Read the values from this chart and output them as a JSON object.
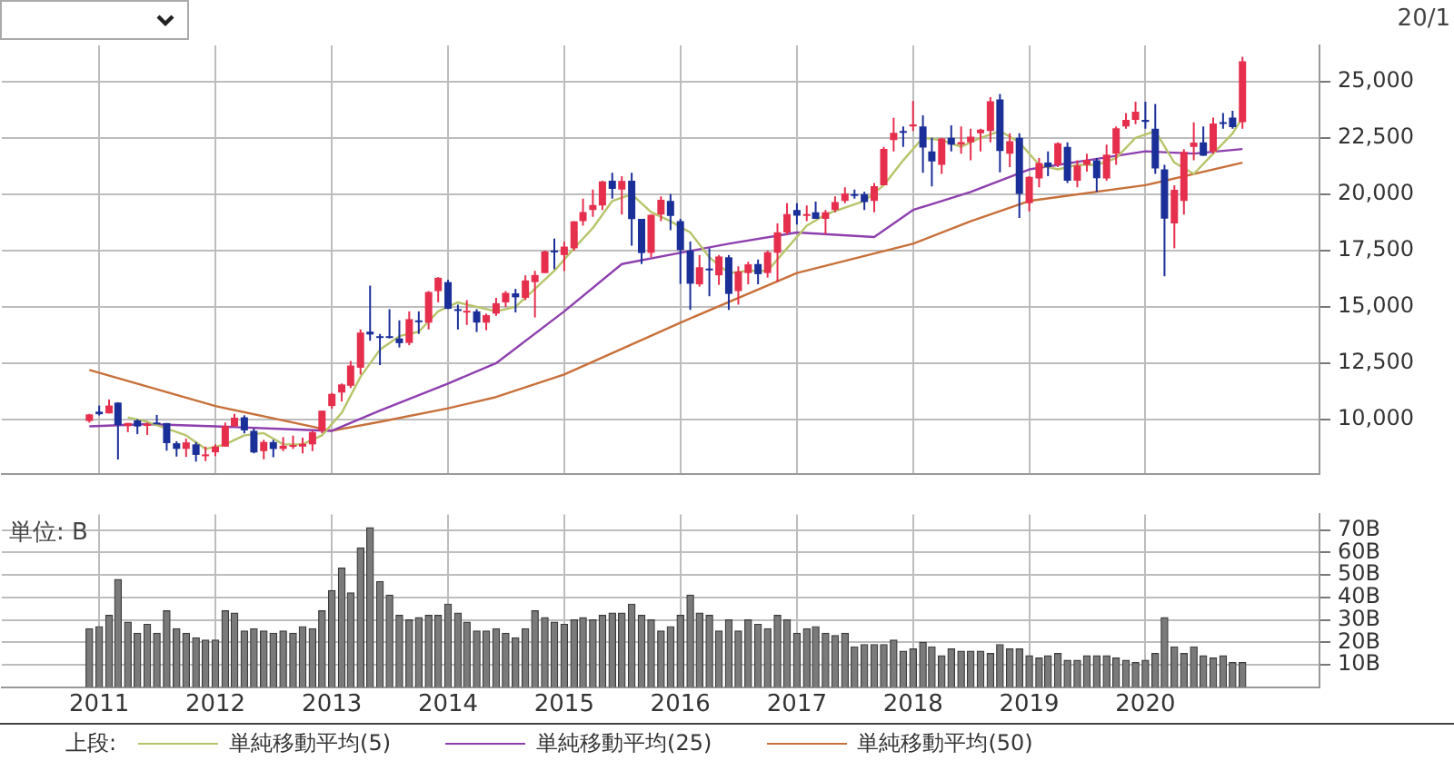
{
  "chart_data": [
    {
      "type": "candlestick",
      "annotations": [
        "20/1"
      ],
      "legend": "bottom",
      "legend_title": "上段:",
      "grid": true,
      "tick_labels": "y",
      "x": [
        "2010-12",
        "2011-01",
        "2011-02",
        "2011-03",
        "2011-04",
        "2011-05",
        "2011-06",
        "2011-07",
        "2011-08",
        "2011-09",
        "2011-10",
        "2011-11",
        "2011-12",
        "2012-01",
        "2012-02",
        "2012-03",
        "2012-04",
        "2012-05",
        "2012-06",
        "2012-07",
        "2012-08",
        "2012-09",
        "2012-10",
        "2012-11",
        "2012-12",
        "2013-01",
        "2013-02",
        "2013-03",
        "2013-04",
        "2013-05",
        "2013-06",
        "2013-07",
        "2013-08",
        "2013-09",
        "2013-10",
        "2013-11",
        "2013-12",
        "2014-01",
        "2014-02",
        "2014-03",
        "2014-04",
        "2014-05",
        "2014-06",
        "2014-07",
        "2014-08",
        "2014-09",
        "2014-10",
        "2014-11",
        "2014-12",
        "2015-01",
        "2015-02",
        "2015-03",
        "2015-04",
        "2015-05",
        "2015-06",
        "2015-07",
        "2015-08",
        "2015-09",
        "2015-10",
        "2015-11",
        "2015-12",
        "2016-01",
        "2016-02",
        "2016-03",
        "2016-04",
        "2016-05",
        "2016-06",
        "2016-07",
        "2016-08",
        "2016-09",
        "2016-10",
        "2016-11",
        "2016-12",
        "2017-01",
        "2017-02",
        "2017-03",
        "2017-04",
        "2017-05",
        "2017-06",
        "2017-07",
        "2017-08",
        "2017-09",
        "2017-10",
        "2017-11",
        "2017-12",
        "2018-01",
        "2018-02",
        "2018-03",
        "2018-04",
        "2018-05",
        "2018-06",
        "2018-07",
        "2018-08",
        "2018-09",
        "2018-10",
        "2018-11",
        "2018-12",
        "2019-01",
        "2019-02",
        "2019-03",
        "2019-04",
        "2019-05",
        "2019-06",
        "2019-07",
        "2019-08",
        "2019-09",
        "2019-10",
        "2019-11",
        "2019-12",
        "2020-01",
        "2020-02",
        "2020-03",
        "2020-04",
        "2020-05",
        "2020-06",
        "2020-07",
        "2020-08",
        "2020-09",
        "2020-10",
        "2020-11"
      ],
      "ohlc": [
        [
          9937,
          10253,
          9865,
          10229
        ],
        [
          10352,
          10620,
          10182,
          10238
        ],
        [
          10274,
          10891,
          10274,
          10624
        ],
        [
          10754,
          10768,
          8227,
          9755
        ],
        [
          9708,
          9850,
          9441,
          9850
        ],
        [
          9964,
          10017,
          9351,
          9694
        ],
        [
          9720,
          9870,
          9318,
          9816
        ],
        [
          9868,
          10207,
          9796,
          9833
        ],
        [
          9845,
          9845,
          8619,
          8955
        ],
        [
          8950,
          9040,
          8359,
          8700
        ],
        [
          8700,
          9152,
          8343,
          8988
        ],
        [
          8900,
          9000,
          8135,
          8434
        ],
        [
          8400,
          8800,
          8160,
          8455
        ],
        [
          8549,
          8900,
          8378,
          8802
        ],
        [
          8800,
          9866,
          8800,
          9723
        ],
        [
          9700,
          10255,
          9700,
          10083
        ],
        [
          10100,
          10190,
          9388,
          9521
        ],
        [
          9500,
          9600,
          8500,
          8543
        ],
        [
          8600,
          9100,
          8238,
          9007
        ],
        [
          9000,
          9100,
          8328,
          8695
        ],
        [
          8700,
          9222,
          8600,
          8840
        ],
        [
          8800,
          9288,
          8700,
          8870
        ],
        [
          8800,
          9200,
          8500,
          8928
        ],
        [
          8900,
          9500,
          8600,
          9446
        ],
        [
          9500,
          10400,
          9400,
          10395
        ],
        [
          10600,
          11183,
          10486,
          11139
        ],
        [
          11200,
          11600,
          10800,
          11559
        ],
        [
          11500,
          12600,
          11400,
          12398
        ],
        [
          12300,
          14000,
          12000,
          13861
        ],
        [
          13900,
          15942,
          13500,
          13775
        ],
        [
          13700,
          13800,
          12415,
          13677
        ],
        [
          13700,
          14900,
          13600,
          13668
        ],
        [
          13600,
          14400,
          13200,
          13389
        ],
        [
          13400,
          14800,
          13300,
          14456
        ],
        [
          14400,
          14800,
          13800,
          14328
        ],
        [
          14300,
          15700,
          14000,
          15662
        ],
        [
          15700,
          16320,
          15200,
          16291
        ],
        [
          16100,
          16200,
          14900,
          14915
        ],
        [
          14900,
          15100,
          13995,
          14841
        ],
        [
          14800,
          15300,
          14200,
          14828
        ],
        [
          14800,
          14900,
          13885,
          14304
        ],
        [
          14300,
          14700,
          13964,
          14632
        ],
        [
          14700,
          15400,
          14600,
          15162
        ],
        [
          15200,
          15700,
          15000,
          15621
        ],
        [
          15600,
          15800,
          14753,
          15425
        ],
        [
          15400,
          16400,
          15300,
          16174
        ],
        [
          16100,
          16600,
          14529,
          16414
        ],
        [
          16500,
          17500,
          16500,
          17460
        ],
        [
          17500,
          18030,
          16672,
          17451
        ],
        [
          17300,
          17900,
          16592,
          17674
        ],
        [
          17600,
          18800,
          17500,
          18798
        ],
        [
          18800,
          19800,
          18600,
          19207
        ],
        [
          19300,
          20200,
          19000,
          19520
        ],
        [
          19500,
          20600,
          19300,
          20563
        ],
        [
          20600,
          20952,
          19800,
          20236
        ],
        [
          20200,
          20800,
          19100,
          20585
        ],
        [
          20600,
          20946,
          17714,
          18890
        ],
        [
          18900,
          18900,
          16901,
          17388
        ],
        [
          17400,
          19100,
          17200,
          19083
        ],
        [
          19100,
          19900,
          18800,
          19747
        ],
        [
          19700,
          20000,
          18400,
          19034
        ],
        [
          18800,
          18900,
          16017,
          17518
        ],
        [
          17500,
          17900,
          14865,
          16027
        ],
        [
          16000,
          17300,
          15900,
          16759
        ],
        [
          16700,
          17600,
          15471,
          16666
        ],
        [
          16400,
          17300,
          15975,
          17235
        ],
        [
          17200,
          17300,
          14864,
          15576
        ],
        [
          15700,
          16800,
          15100,
          16569
        ],
        [
          16500,
          17000,
          16000,
          16887
        ],
        [
          16900,
          17100,
          16000,
          16450
        ],
        [
          16500,
          17500,
          16300,
          17425
        ],
        [
          17400,
          18700,
          16111,
          18308
        ],
        [
          18300,
          19600,
          18200,
          19114
        ],
        [
          19300,
          19600,
          18650,
          19041
        ],
        [
          19100,
          19500,
          18800,
          19119
        ],
        [
          19200,
          19668,
          18900,
          18909
        ],
        [
          18900,
          19300,
          18224,
          19197
        ],
        [
          19300,
          19900,
          19200,
          19651
        ],
        [
          19700,
          20300,
          19600,
          20033
        ],
        [
          20000,
          20200,
          19800,
          19925
        ],
        [
          20000,
          20100,
          19300,
          19646
        ],
        [
          19700,
          20500,
          19200,
          20356
        ],
        [
          20400,
          22100,
          20400,
          22012
        ],
        [
          22400,
          23383,
          21900,
          22725
        ],
        [
          22800,
          23000,
          22100,
          22765
        ],
        [
          23000,
          24129,
          22800,
          23098
        ],
        [
          23000,
          23500,
          20950,
          22068
        ],
        [
          21900,
          22500,
          20347,
          21454
        ],
        [
          21300,
          22500,
          20900,
          22468
        ],
        [
          22500,
          23050,
          21900,
          22202
        ],
        [
          22200,
          23000,
          21800,
          22305
        ],
        [
          22300,
          22900,
          21500,
          22554
        ],
        [
          22700,
          22900,
          21900,
          22865
        ],
        [
          22800,
          24300,
          22300,
          24120
        ],
        [
          24200,
          24448,
          20971,
          21920
        ],
        [
          21800,
          22700,
          21200,
          22351
        ],
        [
          22500,
          22700,
          18949,
          20015
        ],
        [
          19600,
          20800,
          19241,
          20773
        ],
        [
          20700,
          21600,
          20300,
          21385
        ],
        [
          21400,
          21900,
          20800,
          21206
        ],
        [
          21300,
          22300,
          21200,
          22259
        ],
        [
          22100,
          22300,
          20500,
          20601
        ],
        [
          20600,
          21500,
          20300,
          21276
        ],
        [
          21300,
          21800,
          21000,
          21521
        ],
        [
          21500,
          21600,
          20100,
          20704
        ],
        [
          20700,
          22200,
          20600,
          21756
        ],
        [
          21800,
          23000,
          21300,
          22927
        ],
        [
          23000,
          23600,
          22900,
          23294
        ],
        [
          23300,
          24100,
          23100,
          23657
        ],
        [
          23300,
          24100,
          22900,
          23205
        ],
        [
          22900,
          24000,
          20900,
          21143
        ],
        [
          21100,
          21300,
          16358,
          18917
        ],
        [
          18700,
          20400,
          17600,
          20194
        ],
        [
          19700,
          22000,
          19100,
          21878
        ],
        [
          22100,
          23185,
          21500,
          22288
        ],
        [
          22300,
          23000,
          21700,
          21710
        ],
        [
          21900,
          23400,
          21800,
          23140
        ],
        [
          23200,
          23600,
          22900,
          23185
        ],
        [
          23400,
          23700,
          22900,
          22977
        ],
        [
          23200,
          26100,
          22900,
          25900
        ]
      ],
      "colors": [
        "#e62e4d",
        "#1b2f99",
        "#e62e4d",
        "#1b2f99",
        "#e62e4d",
        "#1b2f99",
        "#e62e4d",
        "#1b2f99",
        "#1b2f99",
        "#1b2f99",
        "#e62e4d",
        "#1b2f99",
        "#e62e4d",
        "#e62e4d",
        "#e62e4d",
        "#e62e4d",
        "#1b2f99",
        "#1b2f99",
        "#e62e4d",
        "#1b2f99",
        "#e62e4d",
        "#e62e4d",
        "#e62e4d",
        "#e62e4d",
        "#e62e4d",
        "#e62e4d",
        "#e62e4d",
        "#e62e4d",
        "#e62e4d",
        "#1b2f99",
        "#1b2f99",
        "#1b2f99",
        "#1b2f99",
        "#e62e4d",
        "#1b2f99",
        "#e62e4d",
        "#e62e4d",
        "#1b2f99",
        "#1b2f99",
        "#e62e4d",
        "#1b2f99",
        "#e62e4d",
        "#e62e4d",
        "#e62e4d",
        "#1b2f99",
        "#e62e4d",
        "#e62e4d",
        "#e62e4d",
        "#1b2f99",
        "#e62e4d",
        "#e62e4d",
        "#e62e4d",
        "#e62e4d",
        "#e62e4d",
        "#1b2f99",
        "#e62e4d",
        "#1b2f99",
        "#1b2f99",
        "#e62e4d",
        "#e62e4d",
        "#1b2f99",
        "#1b2f99",
        "#1b2f99",
        "#e62e4d",
        "#1b2f99",
        "#e62e4d",
        "#1b2f99",
        "#e62e4d",
        "#e62e4d",
        "#1b2f99",
        "#e62e4d",
        "#e62e4d",
        "#e62e4d",
        "#1b2f99",
        "#e62e4d",
        "#1b2f99",
        "#e62e4d",
        "#e62e4d",
        "#e62e4d",
        "#1b2f99",
        "#1b2f99",
        "#e62e4d",
        "#e62e4d",
        "#e62e4d",
        "#1b2f99",
        "#e62e4d",
        "#1b2f99",
        "#1b2f99",
        "#e62e4d",
        "#1b2f99",
        "#e62e4d",
        "#e62e4d",
        "#e62e4d",
        "#e62e4d",
        "#1b2f99",
        "#e62e4d",
        "#1b2f99",
        "#e62e4d",
        "#e62e4d",
        "#1b2f99",
        "#e62e4d",
        "#1b2f99",
        "#e62e4d",
        "#e62e4d",
        "#1b2f99",
        "#e62e4d",
        "#e62e4d",
        "#e62e4d",
        "#e62e4d",
        "#1b2f99",
        "#1b2f99",
        "#1b2f99",
        "#e62e4d",
        "#e62e4d",
        "#e62e4d",
        "#1b2f99",
        "#e62e4d",
        "#1b2f99",
        "#1b2f99",
        "#e62e4d"
      ],
      "series": [
        {
          "name": "単純移動平均(5)",
          "type": "line",
          "color": "#b8c46a",
          "x": [
            "2011-04",
            "2011-06",
            "2011-08",
            "2011-10",
            "2011-12",
            "2012-02",
            "2012-04",
            "2012-06",
            "2012-08",
            "2012-10",
            "2012-12",
            "2013-02",
            "2013-04",
            "2013-06",
            "2013-08",
            "2013-10",
            "2013-12",
            "2014-02",
            "2014-04",
            "2014-06",
            "2014-08",
            "2014-10",
            "2014-12",
            "2015-02",
            "2015-04",
            "2015-06",
            "2015-08",
            "2015-10",
            "2015-12",
            "2016-02",
            "2016-04",
            "2016-06",
            "2016-08",
            "2016-10",
            "2016-12",
            "2017-02",
            "2017-04",
            "2017-06",
            "2017-08",
            "2017-10",
            "2017-12",
            "2018-02",
            "2018-04",
            "2018-06",
            "2018-08",
            "2018-10",
            "2018-12",
            "2019-02",
            "2019-04",
            "2019-06",
            "2019-08",
            "2019-10",
            "2019-12",
            "2020-02",
            "2020-04",
            "2020-06",
            "2020-08",
            "2020-10",
            "2020-11"
          ],
          "values": [
            10100,
            9900,
            9600,
            9300,
            8700,
            8900,
            9300,
            9400,
            8900,
            8900,
            9300,
            10300,
            11900,
            13100,
            13700,
            13900,
            14800,
            15200,
            15000,
            14800,
            15000,
            15800,
            16600,
            17600,
            18500,
            19700,
            20000,
            19200,
            18800,
            18300,
            17200,
            16500,
            16600,
            16600,
            17600,
            18600,
            19100,
            19400,
            19700,
            20400,
            21500,
            22500,
            22400,
            22100,
            22500,
            22800,
            22300,
            21300,
            21100,
            21300,
            21300,
            21600,
            22500,
            22800,
            21400,
            20900,
            21800,
            22700,
            23400
          ]
        },
        {
          "name": "単純移動平均(25)",
          "type": "line",
          "color": "#8e3fae",
          "x": [
            "2010-12",
            "2011-06",
            "2012-01",
            "2012-07",
            "2013-01",
            "2013-06",
            "2014-01",
            "2014-06",
            "2015-01",
            "2015-07",
            "2016-01",
            "2016-06",
            "2017-01",
            "2017-09",
            "2018-01",
            "2018-07",
            "2019-01",
            "2019-07",
            "2020-01",
            "2020-06",
            "2020-11"
          ],
          "values": [
            9700,
            9800,
            9700,
            9600,
            9500,
            10400,
            11600,
            12500,
            14800,
            16900,
            17400,
            17800,
            18300,
            18100,
            19300,
            20100,
            21100,
            21500,
            21900,
            21800,
            22000
          ]
        },
        {
          "name": "単純移動平均(50)",
          "type": "line",
          "color": "#c8703a",
          "x": [
            "2010-12",
            "2012-01",
            "2013-01",
            "2013-06",
            "2014-01",
            "2014-06",
            "2015-01",
            "2016-01",
            "2017-01",
            "2018-01",
            "2018-07",
            "2019-01",
            "2020-01",
            "2020-11"
          ],
          "values": [
            12200,
            10600,
            9500,
            9900,
            10500,
            11000,
            12000,
            14300,
            16500,
            17800,
            18800,
            19700,
            20400,
            21400
          ]
        }
      ],
      "xlim": [
        "2010-03",
        "2021-07"
      ],
      "xticks": [
        {
          "value": "2011-01",
          "label": null
        },
        {
          "value": "2012-01",
          "label": null
        },
        {
          "value": "2013-01",
          "label": null
        },
        {
          "value": "2014-01",
          "label": null
        },
        {
          "value": "2015-01",
          "label": null
        },
        {
          "value": "2016-01",
          "label": null
        },
        {
          "value": "2017-01",
          "label": null
        },
        {
          "value": "2018-01",
          "label": null
        },
        {
          "value": "2019-01",
          "label": null
        },
        {
          "value": "2020-01",
          "label": null
        }
      ],
      "ylim": [
        7600,
        26600
      ],
      "yticks": [
        {
          "value": 10000,
          "label": "10,000"
        },
        {
          "value": 12500,
          "label": "12,500"
        },
        {
          "value": 15000,
          "label": "15,000"
        },
        {
          "value": 17500,
          "label": "17,500"
        },
        {
          "value": 20000,
          "label": "20,000"
        },
        {
          "value": 22500,
          "label": "22,500"
        },
        {
          "value": 25000,
          "label": "25,000"
        }
      ]
    },
    {
      "type": "bar",
      "annotations": [
        "単位: B"
      ],
      "grid": true,
      "color": "#7a7a7a",
      "x": [
        "2010-12",
        "2011-01",
        "2011-02",
        "2011-03",
        "2011-04",
        "2011-05",
        "2011-06",
        "2011-07",
        "2011-08",
        "2011-09",
        "2011-10",
        "2011-11",
        "2011-12",
        "2012-01",
        "2012-02",
        "2012-03",
        "2012-04",
        "2012-05",
        "2012-06",
        "2012-07",
        "2012-08",
        "2012-09",
        "2012-10",
        "2012-11",
        "2012-12",
        "2013-01",
        "2013-02",
        "2013-03",
        "2013-04",
        "2013-05",
        "2013-06",
        "2013-07",
        "2013-08",
        "2013-09",
        "2013-10",
        "2013-11",
        "2013-12",
        "2014-01",
        "2014-02",
        "2014-03",
        "2014-04",
        "2014-05",
        "2014-06",
        "2014-07",
        "2014-08",
        "2014-09",
        "2014-10",
        "2014-11",
        "2014-12",
        "2015-01",
        "2015-02",
        "2015-03",
        "2015-04",
        "2015-05",
        "2015-06",
        "2015-07",
        "2015-08",
        "2015-09",
        "2015-10",
        "2015-11",
        "2015-12",
        "2016-01",
        "2016-02",
        "2016-03",
        "2016-04",
        "2016-05",
        "2016-06",
        "2016-07",
        "2016-08",
        "2016-09",
        "2016-10",
        "2016-11",
        "2016-12",
        "2017-01",
        "2017-02",
        "2017-03",
        "2017-04",
        "2017-05",
        "2017-06",
        "2017-07",
        "2017-08",
        "2017-09",
        "2017-10",
        "2017-11",
        "2017-12",
        "2018-01",
        "2018-02",
        "2018-03",
        "2018-04",
        "2018-05",
        "2018-06",
        "2018-07",
        "2018-08",
        "2018-09",
        "2018-10",
        "2018-11",
        "2018-12",
        "2019-01",
        "2019-02",
        "2019-03",
        "2019-04",
        "2019-05",
        "2019-06",
        "2019-07",
        "2019-08",
        "2019-09",
        "2019-10",
        "2019-11",
        "2019-12",
        "2020-01",
        "2020-02",
        "2020-03",
        "2020-04",
        "2020-05",
        "2020-06",
        "2020-07",
        "2020-08",
        "2020-09",
        "2020-10",
        "2020-11"
      ],
      "values": [
        26,
        27,
        32,
        48,
        29,
        24,
        28,
        24,
        34,
        26,
        24,
        22,
        21,
        21,
        34,
        33,
        25,
        26,
        25,
        24,
        25,
        24,
        27,
        26,
        34,
        43,
        53,
        42,
        62,
        71,
        47,
        41,
        32,
        30,
        31,
        32,
        32,
        37,
        33,
        29,
        25,
        25,
        26,
        24,
        22,
        26,
        34,
        31,
        29,
        28,
        30,
        31,
        30,
        32,
        33,
        33,
        37,
        32,
        30,
        25,
        27,
        32,
        41,
        33,
        32,
        25,
        30,
        25,
        30,
        28,
        26,
        32,
        30,
        24,
        26,
        27,
        24,
        23,
        24,
        18,
        19,
        19,
        19,
        21,
        16,
        17,
        20,
        18,
        14,
        17,
        16,
        16,
        16,
        15,
        19,
        17,
        17,
        14,
        13,
        14,
        15,
        12,
        12,
        14,
        14,
        14,
        13,
        12,
        11,
        12,
        15,
        31,
        18,
        15,
        18,
        14,
        13,
        14,
        11,
        11
      ],
      "xlim": [
        "2010-03",
        "2021-07"
      ],
      "xticks": [
        {
          "value": "2011-01",
          "label": "2011"
        },
        {
          "value": "2012-01",
          "label": "2012"
        },
        {
          "value": "2013-01",
          "label": "2013"
        },
        {
          "value": "2014-01",
          "label": "2014"
        },
        {
          "value": "2015-01",
          "label": "2015"
        },
        {
          "value": "2016-01",
          "label": "2016"
        },
        {
          "value": "2017-01",
          "label": "2017"
        },
        {
          "value": "2018-01",
          "label": "2018"
        },
        {
          "value": "2019-01",
          "label": "2019"
        },
        {
          "value": "2020-01",
          "label": "2020"
        }
      ],
      "ylim": [
        0,
        77
      ],
      "yticks": [
        {
          "value": 10,
          "label": "10B"
        },
        {
          "value": 20,
          "label": "20B"
        },
        {
          "value": 30,
          "label": "30B"
        },
        {
          "value": 40,
          "label": "40B"
        },
        {
          "value": 50,
          "label": "50B"
        },
        {
          "value": 60,
          "label": "60B"
        },
        {
          "value": 70,
          "label": "70B"
        }
      ]
    }
  ]
}
